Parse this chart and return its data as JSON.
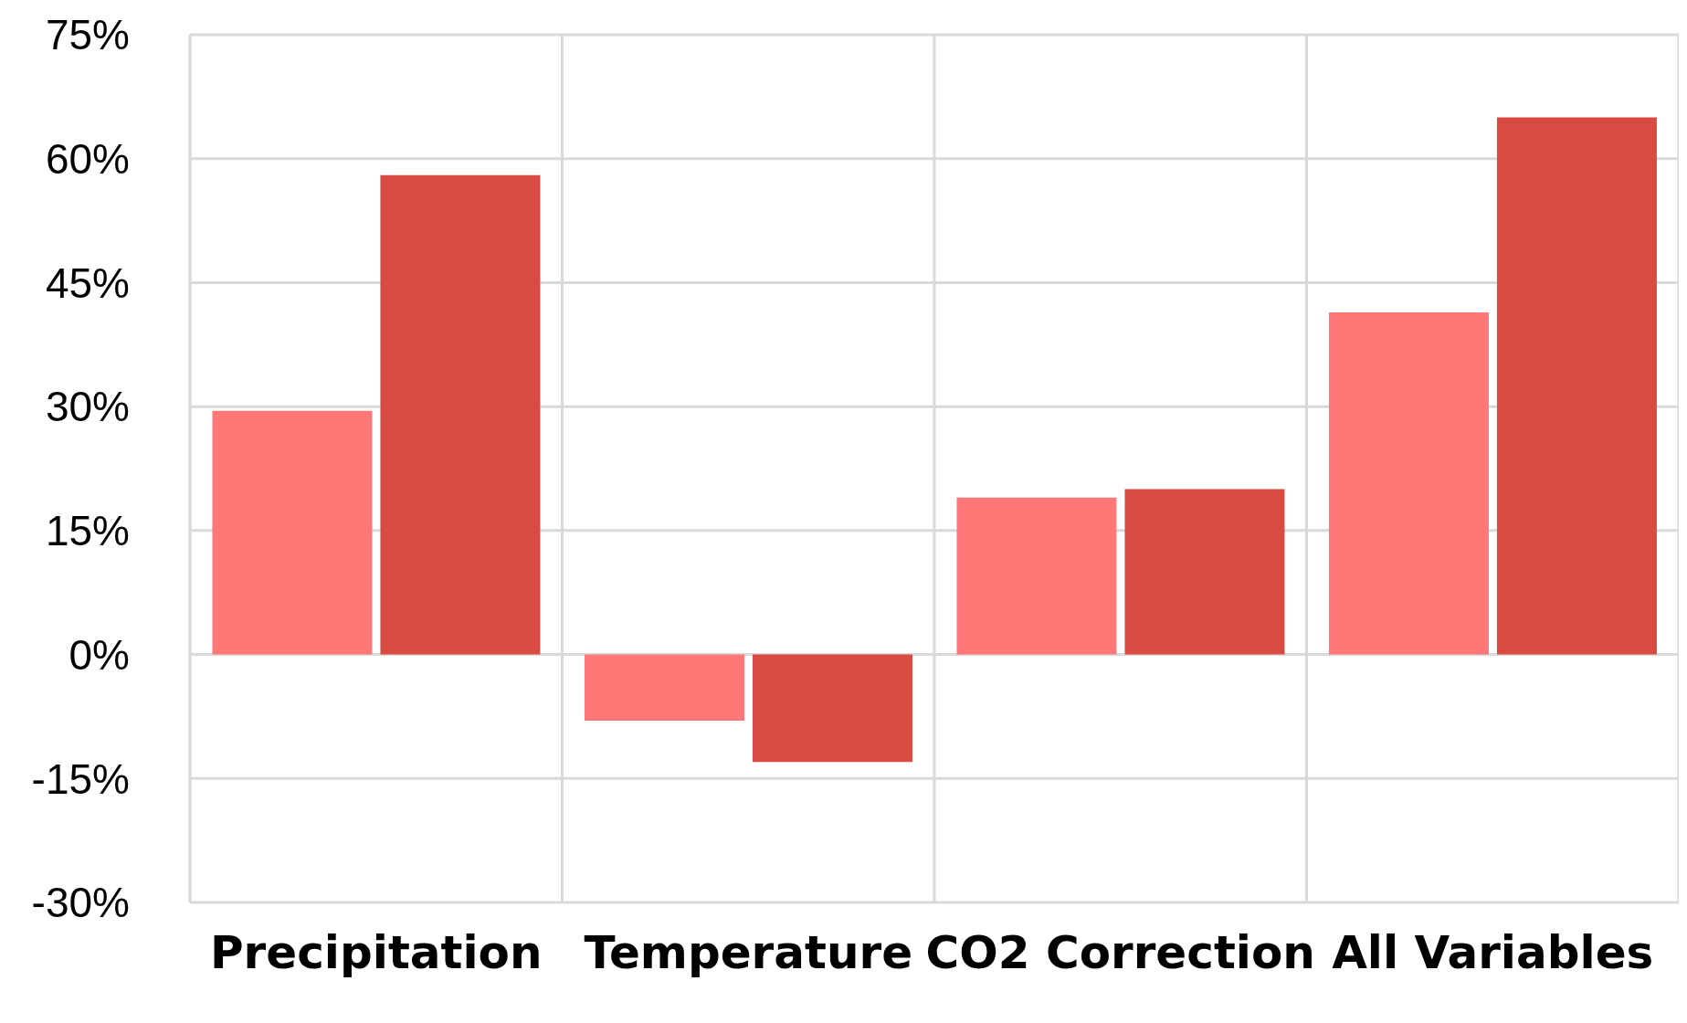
{
  "chart_data": {
    "type": "bar",
    "categories": [
      "Precipitation",
      "Temperature",
      "CO2 Correction",
      "All Variables"
    ],
    "series": [
      {
        "color": "#ff7777",
        "values": [
          29.5,
          -8,
          19,
          41.4
        ]
      },
      {
        "color": "#d94a43",
        "values": [
          58,
          -13,
          20,
          65
        ]
      }
    ],
    "ylim": [
      -30,
      75
    ],
    "yticks": [
      {
        "value": -30,
        "label": "-30%"
      },
      {
        "value": -15,
        "label": "-15%"
      },
      {
        "value": 0,
        "label": "0%"
      },
      {
        "value": 15,
        "label": "15%"
      },
      {
        "value": 30,
        "label": "30%"
      },
      {
        "value": 45,
        "label": "45%"
      },
      {
        "value": 60,
        "label": "60%"
      },
      {
        "value": 75,
        "label": "75%"
      }
    ],
    "grid": true,
    "legend": false
  }
}
